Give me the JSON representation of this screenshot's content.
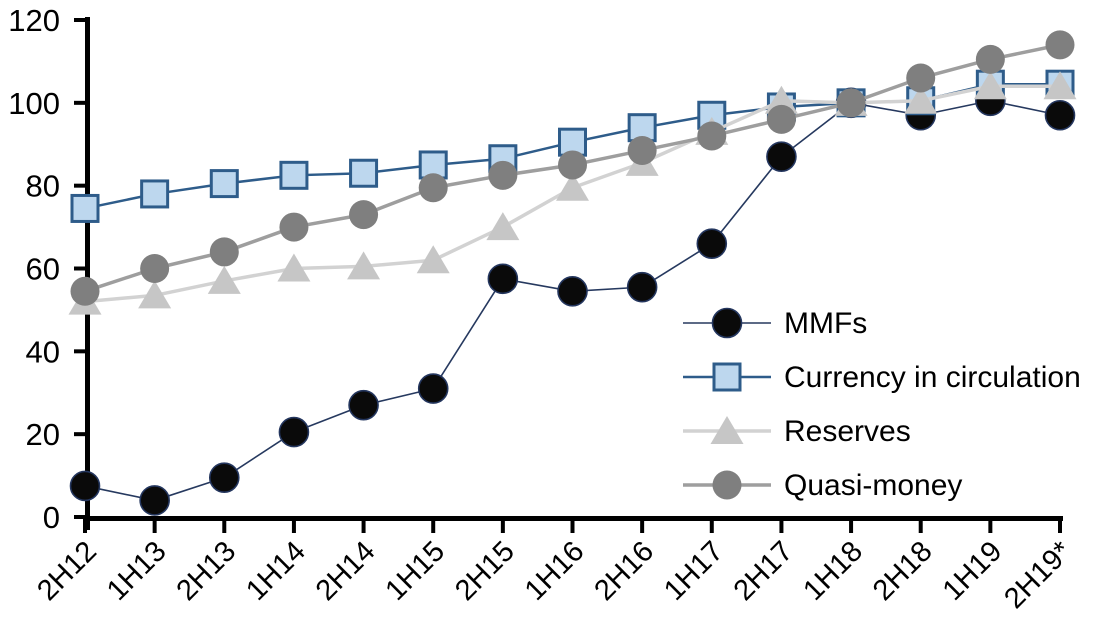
{
  "chart_data": {
    "type": "line",
    "title": "",
    "xlabel": "",
    "ylabel": "",
    "ylim": [
      0,
      120
    ],
    "yticks": [
      0,
      20,
      40,
      60,
      80,
      100,
      120
    ],
    "grid": false,
    "legend_position": "inside-right",
    "axis_color": "#000000",
    "categories": [
      "2H12",
      "1H13",
      "2H13",
      "1H14",
      "2H14",
      "1H15",
      "2H15",
      "1H16",
      "2H16",
      "1H17",
      "2H17",
      "1H18",
      "2H18",
      "1H19",
      "2H19*"
    ],
    "series": [
      {
        "name": "MMFs",
        "marker": "circle",
        "marker_color": "#0a0a0a",
        "marker_edge": "#24365e",
        "line_color": "#26395f",
        "line_width": 1.6,
        "values": [
          7.5,
          4,
          9.5,
          20.5,
          27,
          31,
          57.5,
          54.5,
          55.5,
          66,
          87,
          100,
          97,
          100.5,
          97
        ]
      },
      {
        "name": "Currency in circulation",
        "marker": "square",
        "marker_color": "#bdd7ee",
        "marker_edge": "#2e5c8a",
        "line_color": "#2e5c8a",
        "line_width": 2.5,
        "values": [
          74.5,
          78,
          80.5,
          82.5,
          83,
          85,
          86.5,
          90.5,
          94,
          97,
          99,
          100,
          100.5,
          104.5,
          104.5
        ]
      },
      {
        "name": "Reserves",
        "marker": "triangle",
        "marker_color": "#c6c6c6",
        "marker_edge": "none",
        "line_color": "#d2d2d2",
        "line_width": 3.5,
        "values": [
          52,
          53.5,
          57,
          60,
          60.5,
          62,
          70,
          79.5,
          85.5,
          93,
          100.5,
          100,
          100.5,
          104,
          104
        ]
      },
      {
        "name": "Quasi-money",
        "marker": "circle",
        "marker_color": "#7f7f7f",
        "marker_edge": "none",
        "line_color": "#9e9e9e",
        "line_width": 3.5,
        "values": [
          54.5,
          60,
          64,
          70,
          73,
          79.5,
          82.5,
          85,
          88.5,
          92,
          96,
          100,
          106,
          110.5,
          114
        ]
      }
    ]
  }
}
